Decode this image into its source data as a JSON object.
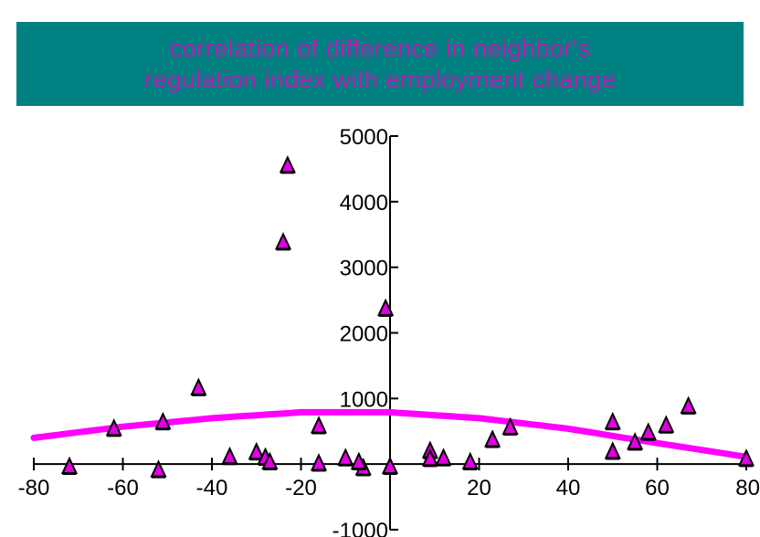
{
  "title_lines": [
    "correlation of difference in neighbor's",
    "regulation index with employment change"
  ],
  "colors": {
    "title_background": "#008080",
    "title_text": "#b41fb4",
    "marker_fill": "#e000e0",
    "trend_line": "#ff00ff",
    "axis": "#000000"
  },
  "chart_data": {
    "type": "scatter",
    "title": "correlation of difference in neighbor's regulation index with employment change",
    "xlabel": "",
    "ylabel": "",
    "xlim": [
      -80,
      80
    ],
    "ylim": [
      -1000,
      5000
    ],
    "x_ticks": [
      -80,
      -60,
      -40,
      -20,
      0,
      20,
      40,
      60,
      80
    ],
    "x_tick_labels": [
      "-80",
      "-60",
      "-40",
      "-20",
      "",
      "20",
      "40",
      "60",
      "80"
    ],
    "y_ticks": [
      5000,
      4000,
      3000,
      2000,
      1000,
      -1000
    ],
    "y_tick_labels": [
      "5000",
      "4000",
      "3000",
      "2000",
      "1000",
      "-1000"
    ],
    "grid": false,
    "marker": "triangle",
    "points": [
      {
        "x": -72,
        "y": -40
      },
      {
        "x": -62,
        "y": 540
      },
      {
        "x": -52,
        "y": -90
      },
      {
        "x": -51,
        "y": 640
      },
      {
        "x": -43,
        "y": 1160
      },
      {
        "x": -36,
        "y": 110
      },
      {
        "x": -30,
        "y": 180
      },
      {
        "x": -28,
        "y": 100
      },
      {
        "x": -27,
        "y": 30
      },
      {
        "x": -23,
        "y": 4550
      },
      {
        "x": -24,
        "y": 3380
      },
      {
        "x": -16,
        "y": 580
      },
      {
        "x": -16,
        "y": 10
      },
      {
        "x": -10,
        "y": 90
      },
      {
        "x": -6,
        "y": -60
      },
      {
        "x": -7,
        "y": 30
      },
      {
        "x": -1,
        "y": 2370
      },
      {
        "x": 0,
        "y": -40
      },
      {
        "x": 9,
        "y": 200
      },
      {
        "x": 9,
        "y": 80
      },
      {
        "x": 12,
        "y": 90
      },
      {
        "x": 18,
        "y": 30
      },
      {
        "x": 23,
        "y": 370
      },
      {
        "x": 27,
        "y": 560
      },
      {
        "x": 50,
        "y": 640
      },
      {
        "x": 50,
        "y": 190
      },
      {
        "x": 55,
        "y": 330
      },
      {
        "x": 58,
        "y": 480
      },
      {
        "x": 62,
        "y": 590
      },
      {
        "x": 67,
        "y": 880
      },
      {
        "x": 80,
        "y": 80
      }
    ],
    "trend_line": {
      "type": "quadratic",
      "points": [
        [
          -80,
          400
        ],
        [
          -60,
          570
        ],
        [
          -40,
          700
        ],
        [
          -20,
          790
        ],
        [
          0,
          790
        ],
        [
          20,
          700
        ],
        [
          40,
          540
        ],
        [
          60,
          320
        ],
        [
          80,
          110
        ]
      ]
    }
  }
}
